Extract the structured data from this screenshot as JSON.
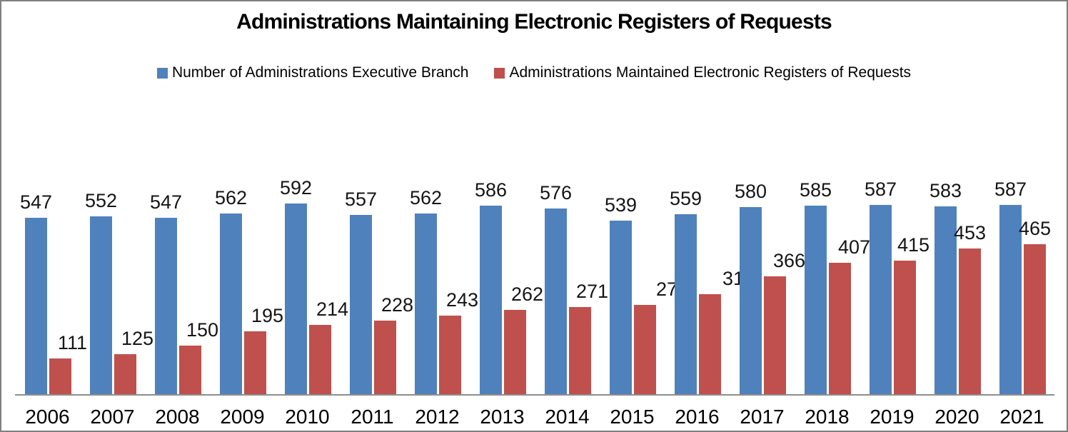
{
  "chart_data": {
    "type": "bar",
    "title": "Administrations Maintaining Electronic Registers of Requests",
    "categories": [
      "2006",
      "2007",
      "2008",
      "2009",
      "2010",
      "2011",
      "2012",
      "2013",
      "2014",
      "2015",
      "2016",
      "2017",
      "2018",
      "2019",
      "2020",
      "2021"
    ],
    "series": [
      {
        "name": "Number of Administrations Executive Branch",
        "color": "#4F81BD",
        "values": [
          547,
          552,
          547,
          562,
          592,
          557,
          562,
          586,
          576,
          539,
          559,
          580,
          585,
          587,
          583,
          587
        ]
      },
      {
        "name": "Administrations Maintained Electronic Registers of Requests",
        "color": "#C0504D",
        "values": [
          111,
          125,
          150,
          195,
          214,
          228,
          243,
          262,
          271,
          277,
          310,
          366,
          407,
          415,
          453,
          465
        ]
      }
    ],
    "xlabel": "",
    "ylabel": "",
    "ylim": [
      0,
      600
    ],
    "grid": false,
    "legend_position": "top",
    "value_labels": true,
    "axis_line_color": "#8E8E8E",
    "border_color": "#808080",
    "background_color": "#FFFFFF"
  }
}
